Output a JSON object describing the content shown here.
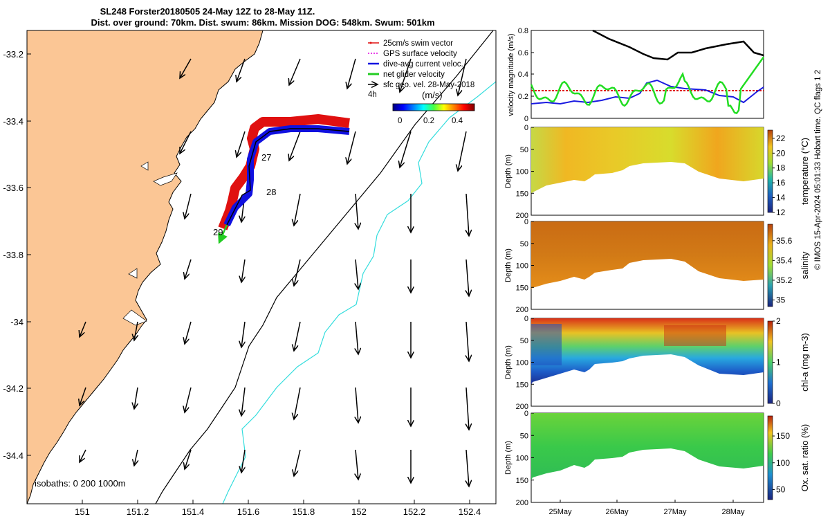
{
  "header": {
    "line1": "SL248 Forster20180505 24-May 12Z to 28-May 11Z.",
    "line2": "Dist. over ground: 70km. Dist. swum: 86km. Mission DOG: 548km. Swum: 501km"
  },
  "map": {
    "lon_ticks": [
      "151",
      "151.2",
      "151.4",
      "151.6",
      "151.8",
      "152",
      "152.2",
      "152.4"
    ],
    "lat_ticks": [
      "-33.2",
      "-33.4",
      "-33.6",
      "-33.8",
      "-34",
      "-34.2",
      "-34.4"
    ],
    "day_labels": [
      "27",
      "28",
      "29"
    ],
    "legend": {
      "items": [
        {
          "label": "25cm/s swim vector",
          "color": "#e01010"
        },
        {
          "label": "GPS surface velocity",
          "color": "#e000e0"
        },
        {
          "label": "dive-avg current veloc.",
          "color": "#1010e0"
        },
        {
          "label": "net glider velocity",
          "color": "#22cc22"
        },
        {
          "label": "sfc geo. vel. 28-May-2018",
          "color": "#000000"
        }
      ],
      "extra_label": "4h",
      "colorbar_title": "(m/s)",
      "colorbar_ticks": [
        "0",
        "0.2",
        "0.4"
      ]
    },
    "isobaths_label": "isobaths: 0   200  1000m",
    "colors": {
      "land": "#fbc695",
      "isobath_200": "#000000",
      "isobath_1000": "#33dddd"
    }
  },
  "right_panels": {
    "velocity": {
      "ylabel": "velocity magnitude (m/s)",
      "yticks": [
        "0",
        "0.2",
        "0.4",
        "0.6",
        "0.8"
      ]
    },
    "depth_ticks": [
      "0",
      "50",
      "100",
      "150",
      "200"
    ],
    "depth_label": "Depth (m)",
    "temperature": {
      "label": "temperature (°C)",
      "ticks": [
        "12",
        "14",
        "16",
        "18",
        "20",
        "22"
      ]
    },
    "salinity": {
      "label": "salinity",
      "ticks": [
        "35",
        "35.2",
        "35.4",
        "35.6"
      ]
    },
    "chla": {
      "label": "chl-a (mg m-3)",
      "ticks": [
        "0",
        "1",
        "2"
      ]
    },
    "oxygen": {
      "label": "Ox. sat. ratio (%)",
      "ticks": [
        "50",
        "100",
        "150"
      ]
    },
    "x_ticks": [
      "25May",
      "26May",
      "27May",
      "28May"
    ],
    "side_note": "© IMOS 15-Apr-2024 05:01:33 Hobart time. QC flags 1  2"
  }
}
